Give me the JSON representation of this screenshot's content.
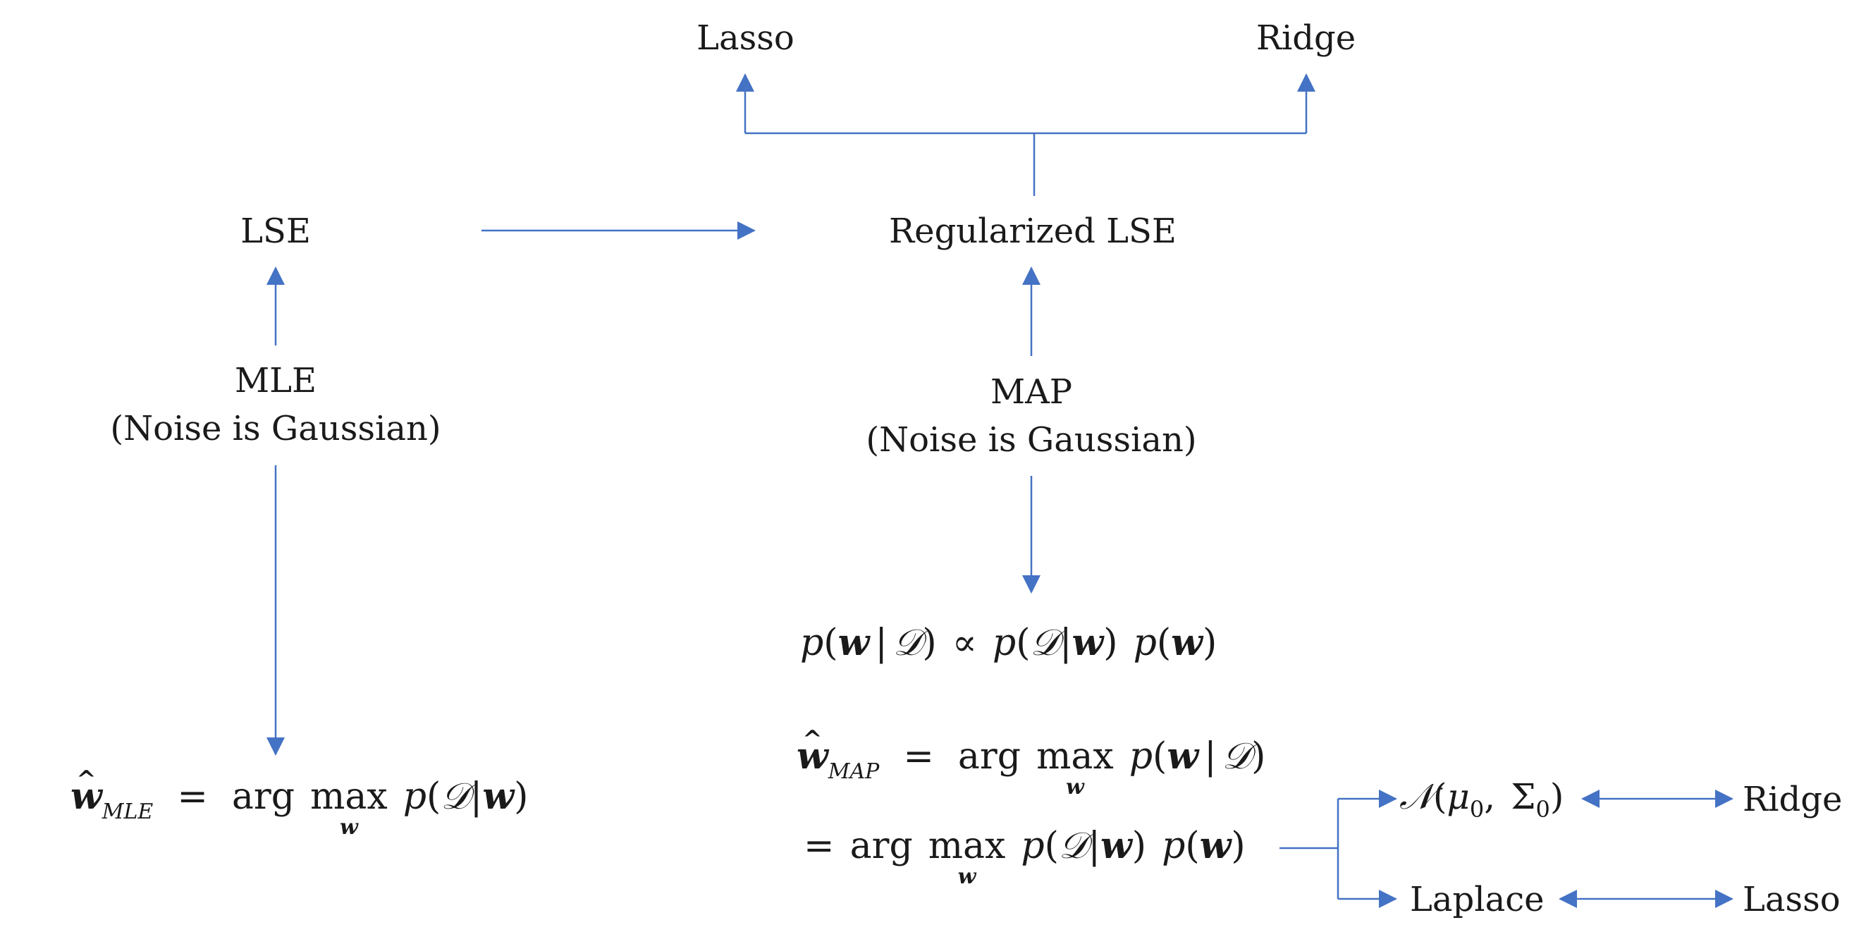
{
  "nodes": {
    "lasso_top": "Lasso",
    "ridge_top": "Ridge",
    "lse": "LSE",
    "regularized_lse": "Regularized LSE",
    "mle": {
      "title": "MLE",
      "subtitle": "(Noise is Gaussian)"
    },
    "map": {
      "title": "MAP",
      "subtitle": "(Noise is Gaussian)"
    },
    "ridge_right": "Ridge",
    "lasso_right": "Lasso",
    "laplace": "Laplace"
  },
  "formulas": {
    "posterior": {
      "p": "p",
      "w": "w",
      "D": "𝒟",
      "proportional": "∝"
    },
    "w_mle": {
      "sub": "MLE",
      "argmax": "arg",
      "max": "max",
      "under": "w"
    },
    "w_map": {
      "sub": "MAP",
      "argmax": "arg",
      "max": "max",
      "under": "w"
    },
    "normal_prior": {
      "N": "𝒩",
      "mu": "μ",
      "sigma": "Σ",
      "zero": "0"
    }
  },
  "colors": {
    "arrow": "#4472C4",
    "text": "#1a1a1a"
  }
}
